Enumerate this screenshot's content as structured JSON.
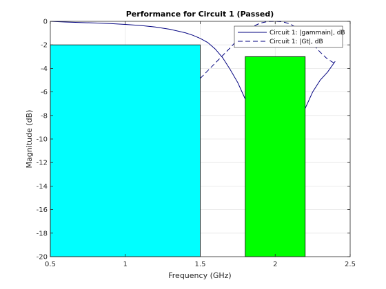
{
  "chart_data": {
    "type": "line",
    "title": "Performance for Circuit 1 (Passed)",
    "xlabel": "Frequency (GHz)",
    "ylabel": "Magnitude (dB)",
    "xlim": [
      0.5,
      2.5
    ],
    "ylim": [
      -20,
      0
    ],
    "xticks": [
      0.5,
      1,
      1.5,
      2,
      2.5
    ],
    "xtick_labels": [
      "0.5",
      "1",
      "1.5",
      "2",
      "2.5"
    ],
    "yticks": [
      0,
      -2,
      -4,
      -6,
      -8,
      -10,
      -12,
      -14,
      -16,
      -18,
      -20
    ],
    "ytick_labels": [
      "0",
      "-2",
      "-4",
      "-6",
      "-8",
      "-10",
      "-12",
      "-14",
      "-16",
      "-18",
      "-20"
    ],
    "grid": true,
    "legend_position": "top-right",
    "spec_regions": [
      {
        "x": [
          0.5,
          1.5
        ],
        "y_top": -2,
        "color": "#00ffff"
      },
      {
        "x": [
          1.8,
          2.2
        ],
        "y_top": -3,
        "color": "#00ff00"
      }
    ],
    "series": [
      {
        "name": "Circuit 1: |gammain|, dB",
        "style": "solid",
        "color": "#00007f",
        "x": [
          0.5,
          0.6,
          0.7,
          0.8,
          0.9,
          1.0,
          1.1,
          1.2,
          1.3,
          1.4,
          1.45,
          1.5,
          1.55,
          1.6,
          1.65,
          1.7,
          1.75,
          1.8,
          2.2,
          2.25,
          2.3,
          2.35,
          2.4
        ],
        "y": [
          0,
          -0.06,
          -0.1,
          -0.14,
          -0.19,
          -0.26,
          -0.35,
          -0.48,
          -0.68,
          -0.97,
          -1.18,
          -1.45,
          -1.8,
          -2.35,
          -3.1,
          -4.1,
          -5.2,
          -6.6,
          -7.4,
          -6.0,
          -5.0,
          -4.3,
          -3.4
        ]
      },
      {
        "name": "Circuit 1: |Gt|, dB",
        "style": "dashed",
        "color": "#00007f",
        "x": [
          1.5,
          1.55,
          1.6,
          1.65,
          1.7,
          1.75,
          1.8,
          1.85,
          1.9,
          1.95,
          2.0,
          2.05,
          2.1,
          2.15,
          2.2,
          2.25,
          2.3,
          2.35,
          2.4
        ],
        "y": [
          -4.85,
          -4.2,
          -3.55,
          -2.9,
          -2.25,
          -1.55,
          -0.95,
          -0.45,
          -0.15,
          -0.02,
          0,
          -0.04,
          -0.22,
          -0.62,
          -1.22,
          -1.92,
          -2.62,
          -3.22,
          -3.6
        ]
      }
    ]
  }
}
